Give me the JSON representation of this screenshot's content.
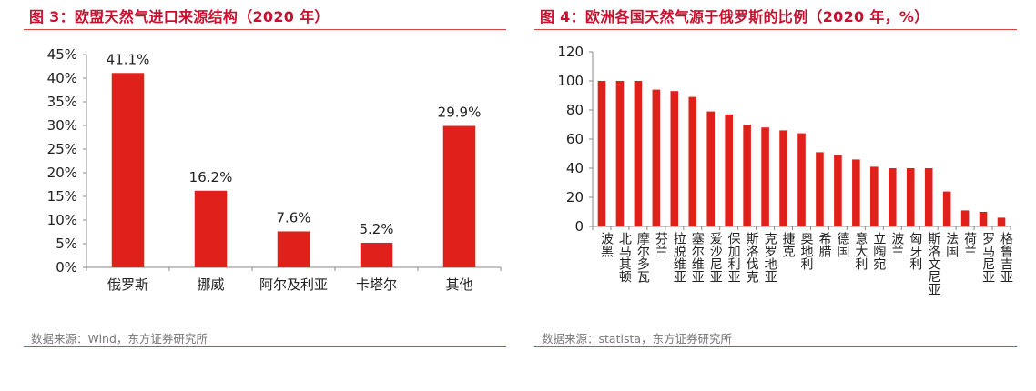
{
  "figures": [
    {
      "title": "图 3：欧盟天然气进口来源结构（2020 年）",
      "source": "数据来源：Wind，东方证券研究所"
    },
    {
      "title": "图 4：欧洲各国天然气源于俄罗斯的比例（2020 年，%）",
      "source": "数据来源：statista，东方证券研究所"
    }
  ],
  "colors": {
    "bar": "#e0201b",
    "title": "#c8102e",
    "rule": "#d9463b",
    "axis": "#888888"
  },
  "chart_data": [
    {
      "type": "bar",
      "title": "图 3：欧盟天然气进口来源结构（2020 年）",
      "categories": [
        "俄罗斯",
        "挪威",
        "阿尔及利亚",
        "卡塔尔",
        "其他"
      ],
      "values": [
        41.1,
        16.2,
        7.6,
        5.2,
        29.9
      ],
      "data_labels": [
        "41.1%",
        "16.2%",
        "7.6%",
        "5.2%",
        "29.9%"
      ],
      "yticks": [
        "0%",
        "5%",
        "10%",
        "15%",
        "20%",
        "25%",
        "30%",
        "35%",
        "40%",
        "45%"
      ],
      "ylim": [
        0,
        45
      ],
      "xlabel": "",
      "ylabel": "",
      "grid": false,
      "legend": "none"
    },
    {
      "type": "bar",
      "title": "图 4：欧洲各国天然气源于俄罗斯的比例（2020 年，%）",
      "categories": [
        "波黑",
        "北马其顿",
        "摩尔多瓦",
        "芬兰",
        "拉脱维亚",
        "塞尔维亚",
        "爱沙尼亚",
        "保加利亚",
        "斯洛伐克",
        "克罗地亚",
        "捷克",
        "奥地利",
        "希腊",
        "德国",
        "意大利",
        "立陶宛",
        "波兰",
        "匈牙利",
        "斯洛文尼亚",
        "法国",
        "荷兰",
        "罗马尼亚",
        "格鲁吉亚"
      ],
      "values": [
        100,
        100,
        100,
        94,
        93,
        89,
        79,
        77,
        70,
        68,
        66,
        64,
        51,
        49,
        46,
        41,
        40,
        40,
        40,
        24,
        11,
        10,
        6
      ],
      "yticks": [
        "0",
        "20",
        "40",
        "60",
        "80",
        "100",
        "120"
      ],
      "ylim": [
        0,
        120
      ],
      "xlabel": "",
      "ylabel": "",
      "grid": false,
      "legend": "none"
    }
  ]
}
